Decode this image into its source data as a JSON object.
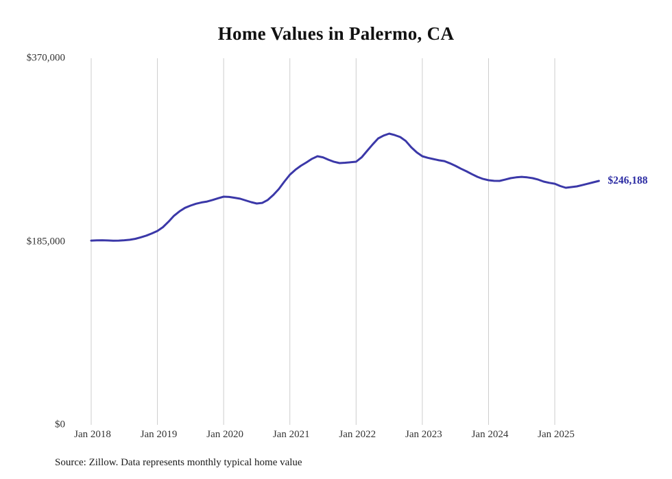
{
  "chart_data": {
    "type": "line",
    "title": "Home Values in Palermo, CA",
    "series_name": "Typical home value",
    "ylabel": "",
    "xlabel": "",
    "ylim": [
      0,
      370000
    ],
    "grid": "vertical",
    "legend": "none",
    "line_color": "#3b38a8",
    "gridline_color": "#cccccc",
    "yticks": [
      {
        "value": 370000,
        "label": "$370,000"
      },
      {
        "value": 185000,
        "label": "$185,000"
      },
      {
        "value": 0,
        "label": "$0"
      }
    ],
    "xticks": [
      "Jan 2018",
      "Jan 2019",
      "Jan 2020",
      "Jan 2021",
      "Jan 2022",
      "Jan 2023",
      "Jan 2024",
      "Jan 2025"
    ],
    "x": [
      "2018-01",
      "2018-02",
      "2018-03",
      "2018-04",
      "2018-05",
      "2018-06",
      "2018-07",
      "2018-08",
      "2018-09",
      "2018-10",
      "2018-11",
      "2018-12",
      "2019-01",
      "2019-02",
      "2019-03",
      "2019-04",
      "2019-05",
      "2019-06",
      "2019-07",
      "2019-08",
      "2019-09",
      "2019-10",
      "2019-11",
      "2019-12",
      "2020-01",
      "2020-02",
      "2020-03",
      "2020-04",
      "2020-05",
      "2020-06",
      "2020-07",
      "2020-08",
      "2020-09",
      "2020-10",
      "2020-11",
      "2020-12",
      "2021-01",
      "2021-02",
      "2021-03",
      "2021-04",
      "2021-05",
      "2021-06",
      "2021-07",
      "2021-08",
      "2021-09",
      "2021-10",
      "2021-11",
      "2021-12",
      "2022-01",
      "2022-02",
      "2022-03",
      "2022-04",
      "2022-05",
      "2022-06",
      "2022-07",
      "2022-08",
      "2022-09",
      "2022-10",
      "2022-11",
      "2022-12",
      "2023-01",
      "2023-02",
      "2023-03",
      "2023-04",
      "2023-05",
      "2023-06",
      "2023-07",
      "2023-08",
      "2023-09",
      "2023-10",
      "2023-11",
      "2023-12",
      "2024-01",
      "2024-02",
      "2024-03",
      "2024-04",
      "2024-05",
      "2024-06",
      "2024-07",
      "2024-08",
      "2024-09",
      "2024-10",
      "2024-11",
      "2024-12",
      "2025-01",
      "2025-02",
      "2025-03",
      "2025-04",
      "2025-05",
      "2025-06",
      "2025-07",
      "2025-08",
      "2025-09"
    ],
    "values": [
      186000,
      186200,
      186300,
      186100,
      185900,
      186000,
      186300,
      186800,
      187800,
      189300,
      191000,
      193200,
      195700,
      199500,
      205000,
      211000,
      215500,
      219000,
      221300,
      223200,
      224500,
      225400,
      227000,
      228700,
      230300,
      230000,
      229200,
      228200,
      226500,
      224800,
      223400,
      224000,
      227000,
      232000,
      238000,
      245500,
      252400,
      257500,
      261500,
      264900,
      268500,
      271100,
      270000,
      267600,
      265500,
      264200,
      264500,
      265000,
      265600,
      270000,
      276600,
      283000,
      289100,
      292000,
      293900,
      292500,
      290500,
      286500,
      280100,
      275000,
      271100,
      269500,
      268300,
      267000,
      266200,
      264000,
      261400,
      258500,
      255900,
      253000,
      250300,
      248200,
      246900,
      246300,
      246200,
      247500,
      249000,
      249800,
      250300,
      249800,
      249000,
      247500,
      245500,
      244300,
      243400,
      241000,
      239300,
      240000,
      240700,
      242000,
      243400,
      244800,
      246188
    ],
    "last_value": 246188,
    "last_value_label": "$246,188",
    "source_note": "Source: Zillow. Data represents monthly typical home value"
  }
}
